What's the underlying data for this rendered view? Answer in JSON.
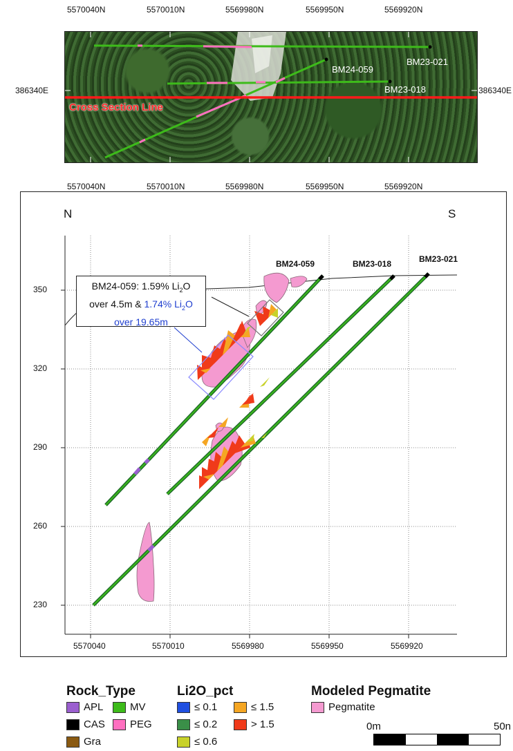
{
  "map": {
    "top_northings": [
      "5570040N",
      "5570010N",
      "5569980N",
      "5569950N",
      "5569920N"
    ],
    "bottom_northings": [
      "5570040N",
      "5570010N",
      "5569980N",
      "5569950N",
      "5569920N"
    ],
    "easting_left": "386340E",
    "easting_right": "386340E",
    "cross_section_label": "Cross Section Line",
    "hole_labels": [
      "BM24-059",
      "BM23-021",
      "BM23-018"
    ]
  },
  "section": {
    "north_label": "N",
    "south_label": "S",
    "y_ticks": [
      "350",
      "320",
      "290",
      "260",
      "230"
    ],
    "x_ticks": [
      "5570040",
      "5570010",
      "5569980",
      "5569950",
      "5569920"
    ],
    "hole_labels": [
      "BM24-059",
      "BM23-018",
      "BM23-021"
    ],
    "callout": {
      "line1_prefix": "BM24-059: 1.59% Li",
      "line1_sub": "2",
      "line1_suffix": "O",
      "line2_prefix": "over 4.5m & ",
      "line2_blue": "1.74% Li",
      "line2_sub": "2",
      "line2_blue_suffix": "O",
      "line3_blue": "over 19.65m"
    }
  },
  "legend": {
    "rock_type": {
      "title": "Rock_Type",
      "items": [
        {
          "label": "APL",
          "color": "#9b5fcf"
        },
        {
          "label": "MV",
          "color": "#3dbb1a"
        },
        {
          "label": "CAS",
          "color": "#000000"
        },
        {
          "label": "PEG",
          "color": "#ff6fc0"
        },
        {
          "label": "Gra",
          "color": "#8a5a12"
        }
      ]
    },
    "li2o": {
      "title": "Li2O_pct",
      "items": [
        {
          "label": "≤ 0.1",
          "color": "#1f4fe0"
        },
        {
          "label": "≤ 1.5",
          "color": "#f5a623"
        },
        {
          "label": "≤ 0.2",
          "color": "#3a8f48"
        },
        {
          "label": "> 1.5",
          "color": "#f03a1a"
        },
        {
          "label": "≤ 0.6",
          "color": "#c8d22a"
        }
      ]
    },
    "pegmatite": {
      "title": "Modeled Pegmatite",
      "item_label": "Pegmatite",
      "color": "#f49ad0"
    },
    "scale": {
      "left_label": "0m",
      "right_label": "50n"
    }
  }
}
